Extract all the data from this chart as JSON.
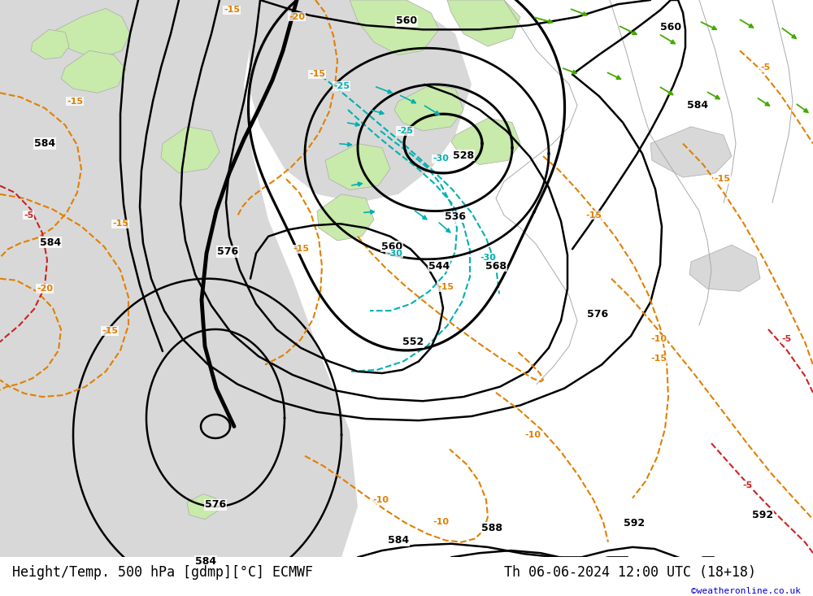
{
  "title_left": "Height/Temp. 500 hPa [gdmp][°C] ECMWF",
  "title_right": "Th 06-06-2024 12:00 UTC (18+18)",
  "watermark": "©weatheronline.co.uk",
  "bg_green": "#c8eaaa",
  "bg_gray": "#d8d8d8",
  "bg_white": "#ffffff",
  "coast_color": "#aaaaaa",
  "black": "#000000",
  "cyan": "#00b0b0",
  "orange": "#e08000",
  "red": "#cc2222",
  "green_wind": "#44aa00",
  "title_fontsize": 12,
  "watermark_fontsize": 8,
  "label_fontsize": 9,
  "figsize": [
    10.0,
    7.33
  ],
  "dpi": 100
}
